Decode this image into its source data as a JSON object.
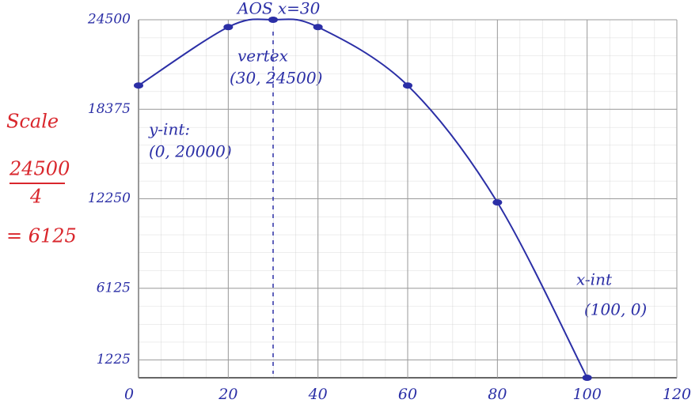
{
  "chart_data": {
    "type": "line",
    "x": [
      0,
      20,
      30,
      40,
      60,
      80,
      100
    ],
    "series": [
      {
        "color": "#2b2fa6",
        "values": [
          20000,
          24000,
          24500,
          24000,
          20000,
          12000,
          0
        ]
      }
    ],
    "xlim": [
      0,
      120
    ],
    "xticks": [
      0,
      20,
      40,
      60,
      80,
      100,
      120
    ],
    "ylim": [
      0,
      24500
    ],
    "yticks": [
      1225,
      6125,
      12250,
      18375,
      24500
    ],
    "grid": true,
    "aos_x": 30,
    "annotations": {
      "aos": "AOS x=30",
      "vertex_title": "vertex",
      "vertex": "(30, 24500)",
      "yint_title": "y-int:",
      "yint": "(0, 20000)",
      "xint_title": "x-int",
      "xint": "(100, 0)"
    },
    "scale_note": {
      "title": "Scale",
      "numerator": "24500",
      "denominator": "4",
      "result": "= 6125",
      "color": "#d9262c"
    }
  }
}
